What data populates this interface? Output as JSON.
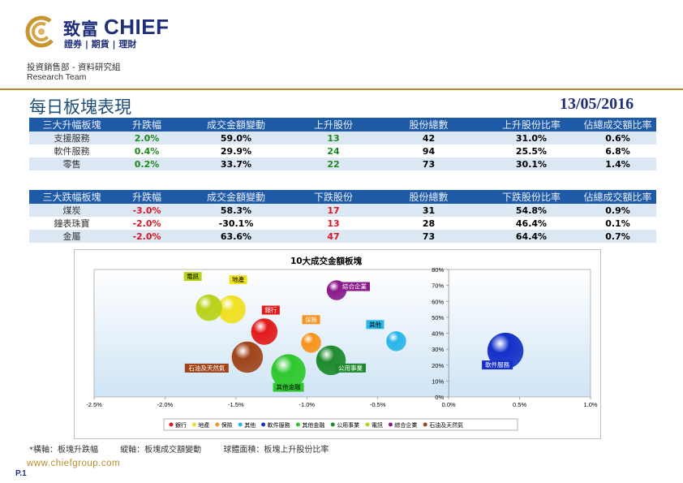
{
  "header": {
    "brand_zh": "致富",
    "brand_en": "CHIEF",
    "brand_sub": "證券 | 期貨 | 理財",
    "dept": "投資銷售部 - 資料研究組",
    "team": "Research Team",
    "title": "每日板塊表現",
    "date": "13/05/2016"
  },
  "colors": {
    "accent_gold": "#b98a2e",
    "header_blue": "#1f5aa6",
    "up": "#1a8a1a",
    "down": "#e0141e"
  },
  "gainers": {
    "headers": [
      "三大升幅板塊",
      "升跌幅",
      "成交金額變動",
      "上升股份",
      "股份總數",
      "上升股份比率",
      "佔總成交額比率"
    ],
    "rows": [
      [
        "支援服務",
        "2.0%",
        "59.0%",
        "13",
        "42",
        "31.0%",
        "0.6%"
      ],
      [
        "軟件服務",
        "0.4%",
        "29.9%",
        "24",
        "94",
        "25.5%",
        "6.8%"
      ],
      [
        "零售",
        "0.2%",
        "33.7%",
        "22",
        "73",
        "30.1%",
        "1.4%"
      ]
    ]
  },
  "losers": {
    "headers": [
      "三大跌幅板塊",
      "升跌幅",
      "成交金額變動",
      "下跌股份",
      "股份總數",
      "下跌股份比率",
      "佔總成交額比率"
    ],
    "rows": [
      [
        "煤炭",
        "-3.0%",
        "58.3%",
        "17",
        "31",
        "54.8%",
        "0.9%"
      ],
      [
        "鐘表珠寶",
        "-2.0%",
        "-30.1%",
        "13",
        "28",
        "46.4%",
        "0.1%"
      ],
      [
        "金屬",
        "-2.0%",
        "63.6%",
        "47",
        "73",
        "64.4%",
        "0.7%"
      ]
    ]
  },
  "chart_data": {
    "type": "bubble",
    "title": "10大成交金額板塊",
    "xlim": [
      -0.025,
      0.01
    ],
    "ylim": [
      0,
      0.8
    ],
    "x_ticks": [
      "-2.5%",
      "-2.0%",
      "-1.5%",
      "-1.0%",
      "-0.5%",
      "0.0%",
      "0.5%",
      "1.0%"
    ],
    "y_ticks": [
      "0%",
      "10%",
      "20%",
      "30%",
      "40%",
      "50%",
      "60%",
      "70%",
      "80%"
    ],
    "grid": false,
    "legend_position": "bottom",
    "series": [
      {
        "name": "銀行",
        "x": -0.013,
        "y": 0.41,
        "color": "#e31a1c"
      },
      {
        "name": "地產",
        "x": -0.0153,
        "y": 0.55,
        "color": "#f0e020"
      },
      {
        "name": "保險",
        "x": -0.0097,
        "y": 0.34,
        "color": "#f7941d"
      },
      {
        "name": "其他",
        "x": -0.0037,
        "y": 0.35,
        "color": "#29b6e8"
      },
      {
        "name": "軟件服務",
        "x": 0.004,
        "y": 0.29,
        "color": "#1530c8"
      },
      {
        "name": "其他金融",
        "x": -0.0113,
        "y": 0.16,
        "color": "#2ec82e"
      },
      {
        "name": "公用事業",
        "x": -0.0083,
        "y": 0.23,
        "color": "#1e8a2e"
      },
      {
        "name": "電訊",
        "x": -0.0169,
        "y": 0.56,
        "color": "#b8d21a"
      },
      {
        "name": "綜合企業",
        "x": -0.0079,
        "y": 0.67,
        "color": "#8a1a8a"
      },
      {
        "name": "石油及天然氣",
        "x": -0.0142,
        "y": 0.25,
        "color": "#a0441a"
      }
    ],
    "footnote": [
      "*橫軸：板塊升跌幅",
      "縱軸：板塊成交額變動",
      "球體面積：板塊上升股份比率"
    ]
  },
  "footer": {
    "website": "www.chiefgroup.com",
    "page": "P.1"
  }
}
